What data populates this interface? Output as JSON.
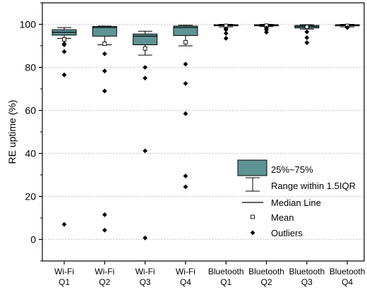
{
  "chart_data": {
    "type": "box",
    "ylabel": "RE uptime (%)",
    "ylim": [
      -10,
      110
    ],
    "yticks": [
      0,
      20,
      40,
      60,
      80,
      100
    ],
    "grid": "horizontal-dotted",
    "categories": [
      [
        "Wi-Fi",
        "Q1"
      ],
      [
        "Wi-Fi",
        "Q2"
      ],
      [
        "Wi-Fi",
        "Q3"
      ],
      [
        "Wi-Fi",
        "Q4"
      ],
      [
        "Bluetooth",
        "Q1"
      ],
      [
        "Bluetooth",
        "Q2"
      ],
      [
        "Bluetooth",
        "Q3"
      ],
      [
        "Bluetooth",
        "Q4"
      ]
    ],
    "box_color": "#5f9494",
    "boxes": [
      {
        "q1": 95.0,
        "median": 96.3,
        "q3": 97.5,
        "whisker_low": 93.5,
        "whisker_high": 98.5,
        "mean": 93.0,
        "outliers": [
          91.0,
          90.5,
          87.3,
          76.5,
          7.0
        ]
      },
      {
        "q1": 94.5,
        "median": 98.5,
        "q3": 99.0,
        "whisker_low": 90.5,
        "whisker_high": 99.2,
        "mean": 91.0,
        "outliers": [
          86.3,
          78.3,
          69.0,
          11.5,
          4.3
        ]
      },
      {
        "q1": 90.5,
        "median": 94.5,
        "q3": 95.5,
        "whisker_low": 85.7,
        "whisker_high": 96.8,
        "mean": 88.8,
        "outliers": [
          80.0,
          75.0,
          41.2,
          0.7
        ]
      },
      {
        "q1": 94.8,
        "median": 98.5,
        "q3": 99.2,
        "whisker_low": 90.0,
        "whisker_high": 99.6,
        "mean": 91.7,
        "outliers": [
          81.5,
          72.5,
          58.5,
          29.5,
          24.5
        ]
      },
      {
        "q1": 99.3,
        "median": 99.7,
        "q3": 99.8,
        "whisker_low": 98.8,
        "whisker_high": 100.0,
        "mean": 99.3,
        "outliers": [
          98.0,
          97.5,
          95.8,
          93.5
        ]
      },
      {
        "q1": 99.4,
        "median": 99.7,
        "q3": 99.8,
        "whisker_low": 99.0,
        "whisker_high": 100.0,
        "mean": 99.4,
        "outliers": [
          98.3,
          97.5,
          96.3
        ]
      },
      {
        "q1": 98.3,
        "median": 99.0,
        "q3": 99.5,
        "whisker_low": 97.8,
        "whisker_high": 99.8,
        "mean": 98.8,
        "outliers": [
          96.5,
          93.8,
          91.5
        ]
      },
      {
        "q1": 99.3,
        "median": 99.7,
        "q3": 99.8,
        "whisker_low": 98.8,
        "whisker_high": 100.0,
        "mean": 99.3,
        "outliers": [
          98.5
        ]
      }
    ],
    "legend": {
      "placement": "bottom-right",
      "entries": [
        {
          "kind": "box",
          "label": "25%~75%"
        },
        {
          "kind": "whisker",
          "label": "Range within 1.5IQR"
        },
        {
          "kind": "median",
          "label": "Median Line"
        },
        {
          "kind": "mean",
          "label": "Mean"
        },
        {
          "kind": "outlier",
          "label": "Outliers"
        }
      ]
    }
  }
}
